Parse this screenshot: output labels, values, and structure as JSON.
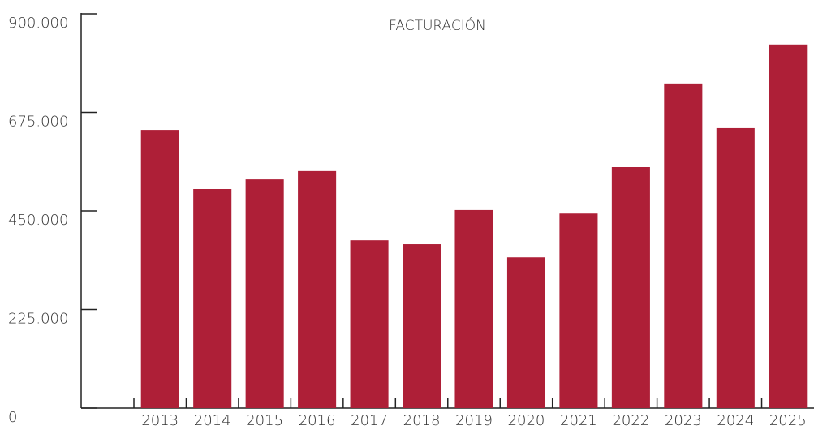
{
  "chart_data": {
    "type": "bar",
    "title": "FACTURACIÓN",
    "categories": [
      "2013",
      "2014",
      "2015",
      "2016",
      "2017",
      "2018",
      "2019",
      "2020",
      "2021",
      "2022",
      "2023",
      "2024",
      "2025"
    ],
    "values": [
      635000,
      500000,
      522000,
      541000,
      383000,
      374000,
      452000,
      344000,
      444000,
      550000,
      741000,
      639000,
      830000
    ],
    "color": "#ae1f37",
    "ylim": [
      0,
      900000
    ],
    "yticks": [
      0,
      {
        "value": 225000,
        "label": "225.000"
      },
      {
        "value": 450000,
        "label": "450.000"
      },
      {
        "value": 675000,
        "label": "675.000"
      },
      {
        "value": 900000,
        "label": "900.000"
      }
    ]
  }
}
